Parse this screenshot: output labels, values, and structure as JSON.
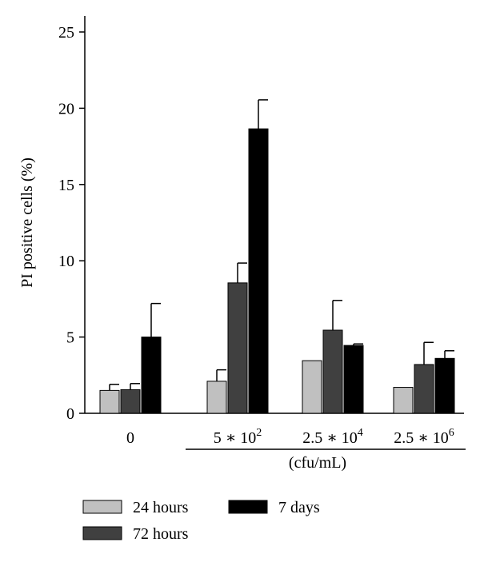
{
  "chart_data": {
    "type": "bar",
    "ylabel": "PI positive cells (%)",
    "ylim": [
      0,
      25
    ],
    "yticks": [
      "0",
      "5",
      "10",
      "15",
      "20",
      "25"
    ],
    "categories": [
      {
        "base": "0",
        "exp": ""
      },
      {
        "base": "5 ∗ 10",
        "exp": "2"
      },
      {
        "base": "2.5 ∗ 10",
        "exp": "4"
      },
      {
        "base": "2.5 ∗ 10",
        "exp": "6"
      }
    ],
    "x_unit": "(cfu/mL)",
    "series": [
      {
        "name": "24 hours",
        "color": "#c0c0c0",
        "values": [
          1.5,
          2.1,
          3.45,
          1.7
        ],
        "errors": [
          0.4,
          0.75,
          0,
          0
        ]
      },
      {
        "name": "72 hours",
        "color": "#404040",
        "values": [
          1.55,
          8.55,
          5.45,
          3.2
        ],
        "errors": [
          0.4,
          1.3,
          1.95,
          1.45
        ]
      },
      {
        "name": "7 days",
        "color": "#000000",
        "values": [
          5.0,
          18.65,
          4.45,
          3.6
        ],
        "errors": [
          2.2,
          1.9,
          0.1,
          0.5
        ]
      }
    ],
    "legend_placement": "bottom",
    "grid": false
  }
}
